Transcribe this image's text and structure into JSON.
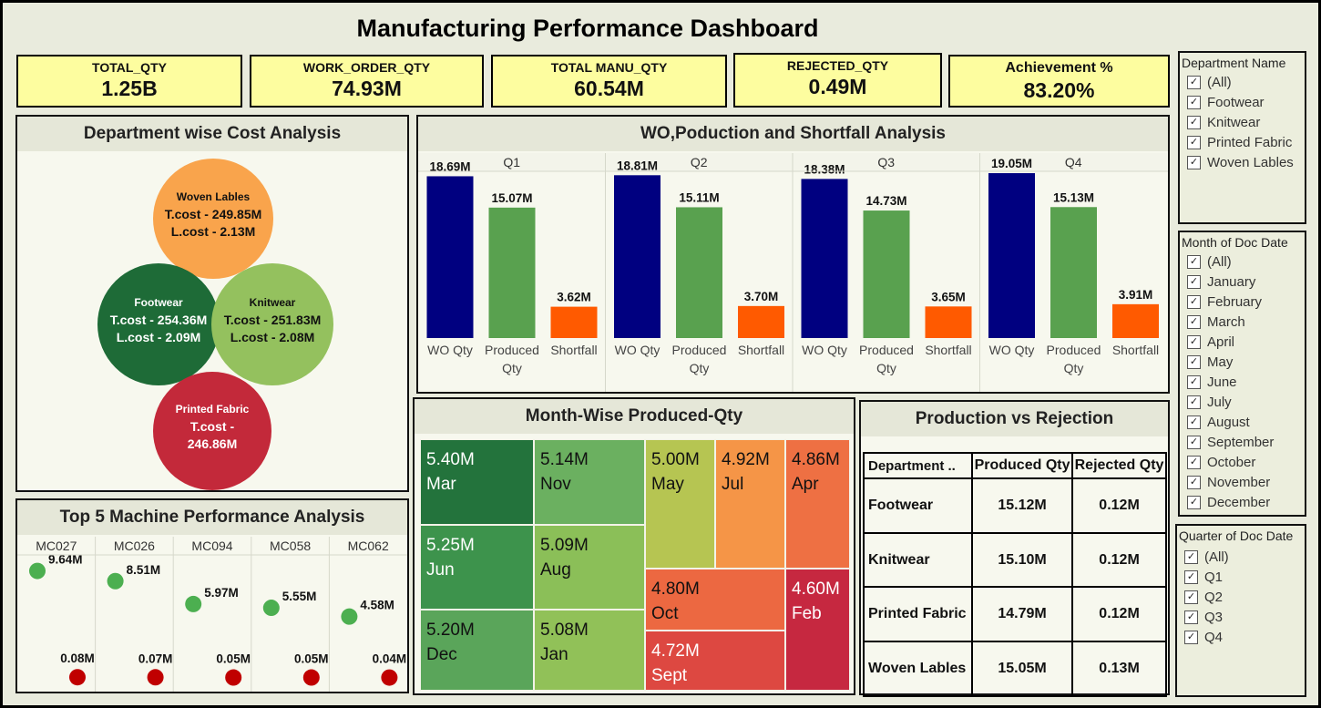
{
  "dashboard": {
    "title": "Manufacturing Performance Dashboard"
  },
  "kpis": [
    {
      "label": "TOTAL_QTY",
      "value": "1.25B"
    },
    {
      "label": "WORK_ORDER_QTY",
      "value": "74.93M"
    },
    {
      "label": "TOTAL MANU_QTY",
      "value": "60.54M"
    },
    {
      "label": "REJECTED_QTY",
      "value": "0.49M"
    },
    {
      "label": "Achievement %",
      "value": "83.20%"
    }
  ],
  "cost_panel": {
    "title": "Department wise Cost Analysis",
    "bubbles": [
      {
        "name": "Woven Lables",
        "lines": [
          "T.cost - 249.85M",
          "L.cost - 2.13M"
        ],
        "color": "#f9a44c",
        "text_color": "#111111"
      },
      {
        "name": "Footwear",
        "lines": [
          "T.cost - 254.36M",
          "L.cost - 2.09M"
        ],
        "color": "#1e6b37",
        "text_color": "#ffffff"
      },
      {
        "name": "Knitwear",
        "lines": [
          "T.cost - 251.83M",
          "L.cost - 2.08M"
        ],
        "color": "#94c15e",
        "text_color": "#111111"
      },
      {
        "name": "Printed Fabric",
        "lines": [
          "T.cost -",
          "246.86M"
        ],
        "color": "#c3293a",
        "text_color": "#ffffff"
      }
    ]
  },
  "wo_panel": {
    "title": "WO,Poduction and Shortfall Analysis"
  },
  "machine_panel": {
    "title": "Top 5 Machine Performance Analysis"
  },
  "month_panel": {
    "title": "Month-Wise Produced-Qty"
  },
  "rejection_panel": {
    "title": "Production vs Rejection",
    "headers": [
      "Department ..",
      "Produced Qty",
      "Rejected Qty"
    ],
    "rows": [
      [
        "Footwear",
        "15.12M",
        "0.12M"
      ],
      [
        "Knitwear",
        "15.10M",
        "0.12M"
      ],
      [
        "Printed Fabric",
        "14.79M",
        "0.12M"
      ],
      [
        "Woven Lables",
        "15.05M",
        "0.13M"
      ]
    ]
  },
  "filters": {
    "department": {
      "title": "Department Name",
      "items": [
        "(All)",
        "Footwear",
        "Knitwear",
        "Printed Fabric",
        "Woven Lables"
      ]
    },
    "month": {
      "title": "Month of Doc Date",
      "items": [
        "(All)",
        "January",
        "February",
        "March",
        "April",
        "May",
        "June",
        "July",
        "August",
        "September",
        "October",
        "November",
        "December"
      ]
    },
    "quarter": {
      "title": "Quarter of Doc Date",
      "items": [
        "(All)",
        "Q1",
        "Q2",
        "Q3",
        "Q4"
      ]
    }
  },
  "chart_data": [
    {
      "type": "bar",
      "title": "WO,Poduction and Shortfall Analysis",
      "panels": [
        "Q1",
        "Q2",
        "Q3",
        "Q4"
      ],
      "categories": [
        "WO Qty",
        "Produced Qty",
        "Shortfall"
      ],
      "colors": [
        "#000080",
        "#59a14f",
        "#ff5a00"
      ],
      "values": [
        [
          18.69,
          15.07,
          3.62
        ],
        [
          18.81,
          15.11,
          3.7
        ],
        [
          18.38,
          14.73,
          3.65
        ],
        [
          19.05,
          15.13,
          3.91
        ]
      ],
      "labels": [
        [
          "18.69M",
          "15.07M",
          "3.62M"
        ],
        [
          "18.81M",
          "15.11M",
          "3.70M"
        ],
        [
          "18.38M",
          "14.73M",
          "3.65M"
        ],
        [
          "19.05M",
          "15.13M",
          "3.91M"
        ]
      ],
      "unit": "M"
    },
    {
      "type": "scatter",
      "title": "Top 5 Machine Performance Analysis",
      "categories": [
        "MC027",
        "MC026",
        "MC094",
        "MC058",
        "MC062"
      ],
      "series": [
        {
          "values": [
            9.64,
            8.51,
            5.97,
            5.55,
            4.58
          ],
          "labels": [
            "9.64M",
            "8.51M",
            "5.97M",
            "5.55M",
            "4.58M"
          ],
          "color": "#4caf50"
        },
        {
          "values": [
            0.08,
            0.07,
            0.05,
            0.05,
            0.04
          ],
          "labels": [
            "0.08M",
            "0.07M",
            "0.05M",
            "0.05M",
            "0.04M"
          ],
          "color": "#c00000"
        }
      ]
    },
    {
      "type": "heatmap",
      "title": "Month-Wise Produced-Qty",
      "items": [
        {
          "month": "Mar",
          "value": 5.4,
          "label": "5.40M",
          "color": "#23733c",
          "text_color": "#ffffff"
        },
        {
          "month": "Nov",
          "value": 5.14,
          "label": "5.14M",
          "color": "#6bb060",
          "text_color": "#111111"
        },
        {
          "month": "Jun",
          "value": 5.25,
          "label": "5.25M",
          "color": "#3d934c",
          "text_color": "#ffffff"
        },
        {
          "month": "Aug",
          "value": 5.09,
          "label": "5.09M",
          "color": "#8bbf58",
          "text_color": "#111111"
        },
        {
          "month": "Dec",
          "value": 5.2,
          "label": "5.20M",
          "color": "#5aa55a",
          "text_color": "#111111"
        },
        {
          "month": "Jan",
          "value": 5.08,
          "label": "5.08M",
          "color": "#91c158",
          "text_color": "#111111"
        },
        {
          "month": "May",
          "value": 5.0,
          "label": "5.00M",
          "color": "#b6c552",
          "text_color": "#111111"
        },
        {
          "month": "Jul",
          "value": 4.92,
          "label": "4.92M",
          "color": "#f59547",
          "text_color": "#111111"
        },
        {
          "month": "Apr",
          "value": 4.86,
          "label": "4.86M",
          "color": "#ee7043",
          "text_color": "#111111"
        },
        {
          "month": "Oct",
          "value": 4.8,
          "label": "4.80M",
          "color": "#ec6841",
          "text_color": "#111111"
        },
        {
          "month": "Sept",
          "value": 4.72,
          "label": "4.72M",
          "color": "#dd4841",
          "text_color": "#ffffff"
        },
        {
          "month": "Feb",
          "value": 4.6,
          "label": "4.60M",
          "color": "#c62840",
          "text_color": "#ffffff"
        }
      ]
    }
  ]
}
